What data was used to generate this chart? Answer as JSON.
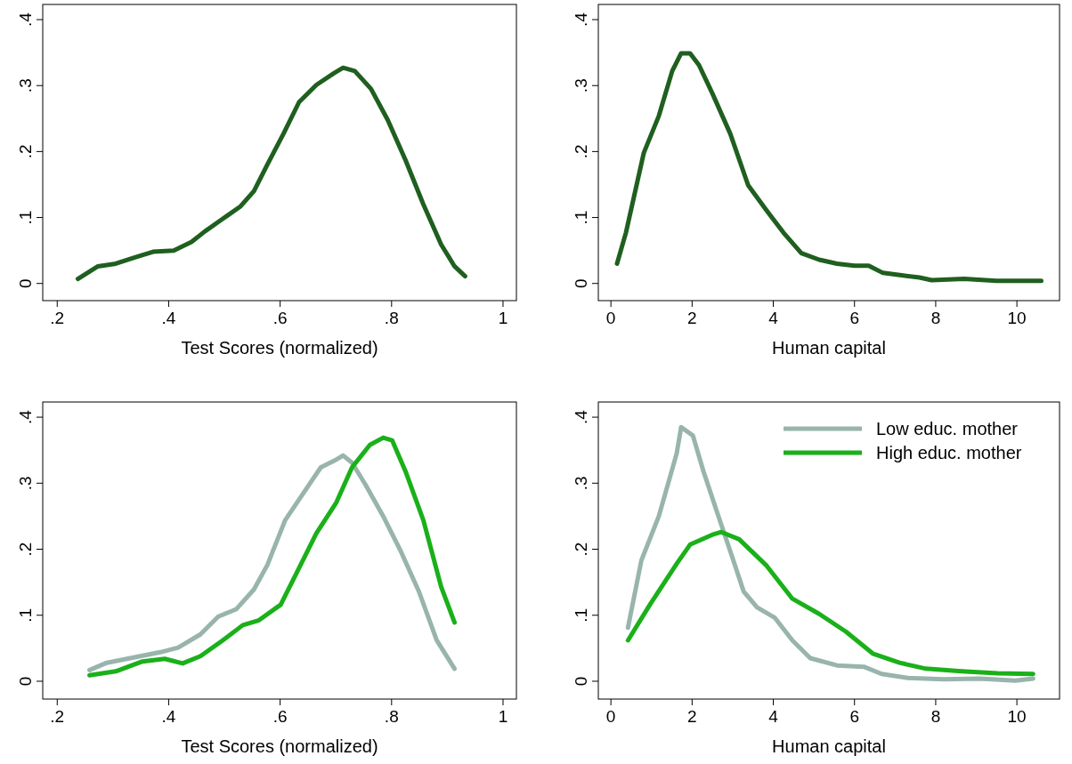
{
  "chart_data": [
    {
      "type": "line",
      "xlabel": "Test Scores (normalized)",
      "xlim": [
        0.174,
        1.024
      ],
      "ylim": [
        -0.026,
        0.423
      ],
      "xticks": [
        {
          "value": 0.2,
          "label": ".2"
        },
        {
          "value": 0.4,
          "label": ".4"
        },
        {
          "value": 0.6,
          "label": ".6"
        },
        {
          "value": 0.8,
          "label": ".8"
        },
        1
      ],
      "yticks": [
        {
          "value": 0,
          "label": "0"
        },
        {
          "value": 0.1,
          "label": ".1"
        },
        {
          "value": 0.2,
          "label": ".2"
        },
        {
          "value": 0.3,
          "label": ".3"
        },
        {
          "value": 0.4,
          "label": ".4"
        }
      ],
      "grid": false,
      "legend": false,
      "series": [
        {
          "color": "#1f5f1f",
          "x": [
            0.237,
            0.273,
            0.305,
            0.337,
            0.372,
            0.409,
            0.441,
            0.465,
            0.497,
            0.529,
            0.553,
            0.577,
            0.606,
            0.634,
            0.665,
            0.697,
            0.713,
            0.734,
            0.763,
            0.793,
            0.825,
            0.857,
            0.889,
            0.913,
            0.932
          ],
          "values": [
            0.007,
            0.026,
            0.03,
            0.039,
            0.048,
            0.05,
            0.063,
            0.079,
            0.098,
            0.117,
            0.14,
            0.18,
            0.227,
            0.275,
            0.301,
            0.319,
            0.327,
            0.322,
            0.295,
            0.248,
            0.187,
            0.12,
            0.059,
            0.026,
            0.011
          ]
        }
      ]
    },
    {
      "type": "line",
      "xlabel": "Human capital",
      "xlim": [
        -0.31,
        11.05
      ],
      "ylim": [
        -0.026,
        0.423
      ],
      "xticks": [
        0,
        2,
        4,
        6,
        8,
        10
      ],
      "yticks": [
        {
          "value": 0,
          "label": "0"
        },
        {
          "value": 0.1,
          "label": ".1"
        },
        {
          "value": 0.2,
          "label": ".2"
        },
        {
          "value": 0.3,
          "label": ".3"
        },
        {
          "value": 0.4,
          "label": ".4"
        }
      ],
      "grid": false,
      "legend": false,
      "series": [
        {
          "color": "#1f5f1f",
          "x": [
            0.15,
            0.37,
            0.81,
            1.18,
            1.51,
            1.73,
            1.95,
            2.17,
            2.5,
            2.94,
            3.38,
            3.82,
            4.25,
            4.69,
            5.13,
            5.57,
            6.0,
            6.35,
            6.7,
            7.2,
            7.6,
            7.9,
            8.3,
            8.7,
            9.5,
            10.6
          ],
          "values": [
            0.03,
            0.077,
            0.198,
            0.254,
            0.322,
            0.349,
            0.349,
            0.331,
            0.288,
            0.227,
            0.149,
            0.112,
            0.077,
            0.046,
            0.036,
            0.03,
            0.027,
            0.027,
            0.016,
            0.012,
            0.009,
            0.005,
            0.006,
            0.007,
            0.004,
            0.004
          ]
        }
      ]
    },
    {
      "type": "line",
      "xlabel": "Test Scores (normalized)",
      "xlim": [
        0.174,
        1.024
      ],
      "ylim": [
        -0.027,
        0.423
      ],
      "xticks": [
        {
          "value": 0.2,
          "label": ".2"
        },
        {
          "value": 0.4,
          "label": ".4"
        },
        {
          "value": 0.6,
          "label": ".6"
        },
        {
          "value": 0.8,
          "label": ".8"
        },
        1
      ],
      "yticks": [
        {
          "value": 0,
          "label": "0"
        },
        {
          "value": 0.1,
          "label": ".1"
        },
        {
          "value": 0.2,
          "label": ".2"
        },
        {
          "value": 0.3,
          "label": ".3"
        },
        {
          "value": 0.4,
          "label": ".4"
        }
      ],
      "grid": false,
      "legend": false,
      "series": [
        {
          "color": "#98b4ad",
          "x": [
            0.258,
            0.289,
            0.337,
            0.385,
            0.417,
            0.457,
            0.489,
            0.521,
            0.553,
            0.577,
            0.609,
            0.641,
            0.673,
            0.697,
            0.713,
            0.729,
            0.753,
            0.785,
            0.817,
            0.849,
            0.881,
            0.913
          ],
          "values": [
            0.017,
            0.028,
            0.036,
            0.044,
            0.051,
            0.071,
            0.098,
            0.109,
            0.139,
            0.176,
            0.244,
            0.284,
            0.324,
            0.334,
            0.342,
            0.331,
            0.298,
            0.25,
            0.196,
            0.136,
            0.062,
            0.019
          ]
        },
        {
          "color": "#1ab01a",
          "x": [
            0.258,
            0.305,
            0.353,
            0.393,
            0.425,
            0.457,
            0.497,
            0.533,
            0.561,
            0.601,
            0.633,
            0.665,
            0.701,
            0.729,
            0.761,
            0.785,
            0.801,
            0.825,
            0.857,
            0.889,
            0.913
          ],
          "values": [
            0.009,
            0.015,
            0.03,
            0.034,
            0.027,
            0.038,
            0.062,
            0.085,
            0.092,
            0.116,
            0.17,
            0.224,
            0.271,
            0.324,
            0.358,
            0.369,
            0.365,
            0.318,
            0.244,
            0.143,
            0.089
          ]
        }
      ]
    },
    {
      "type": "line",
      "xlabel": "Human capital",
      "xlim": [
        -0.31,
        11.05
      ],
      "ylim": [
        -0.027,
        0.423
      ],
      "xticks": [
        0,
        2,
        4,
        6,
        8,
        10
      ],
      "yticks": [
        {
          "value": 0,
          "label": "0"
        },
        {
          "value": 0.1,
          "label": ".1"
        },
        {
          "value": 0.2,
          "label": ".2"
        },
        {
          "value": 0.3,
          "label": ".3"
        },
        {
          "value": 0.4,
          "label": ".4"
        }
      ],
      "grid": false,
      "legend": "top right",
      "series": [
        {
          "name": "Low educ. mother",
          "color": "#98b4ad",
          "x": [
            0.42,
            0.75,
            1.18,
            1.62,
            1.73,
            2.02,
            2.28,
            2.61,
            2.94,
            3.27,
            3.6,
            4.04,
            4.47,
            4.91,
            5.57,
            6.23,
            6.67,
            7.32,
            8.2,
            9.08,
            9.96,
            10.4
          ],
          "values": [
            0.081,
            0.183,
            0.25,
            0.345,
            0.385,
            0.372,
            0.318,
            0.257,
            0.197,
            0.136,
            0.112,
            0.096,
            0.062,
            0.035,
            0.024,
            0.022,
            0.011,
            0.005,
            0.003,
            0.004,
            0.001,
            0.004
          ]
        },
        {
          "name": "High educ. mother",
          "color": "#1ab01a",
          "x": [
            0.42,
            0.96,
            1.62,
            1.95,
            2.5,
            2.72,
            3.16,
            3.82,
            4.47,
            5.13,
            5.79,
            6.45,
            7.11,
            7.76,
            8.64,
            9.52,
            10.4
          ],
          "values": [
            0.062,
            0.116,
            0.178,
            0.207,
            0.222,
            0.226,
            0.215,
            0.176,
            0.125,
            0.102,
            0.075,
            0.042,
            0.028,
            0.019,
            0.015,
            0.012,
            0.011
          ]
        }
      ]
    }
  ]
}
